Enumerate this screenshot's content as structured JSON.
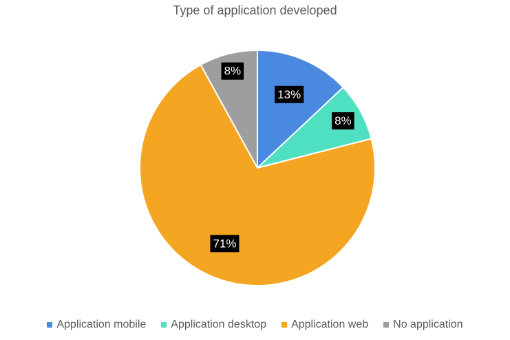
{
  "chart_data": {
    "type": "pie",
    "title": "Type of application developed",
    "categories": [
      "Application mobile",
      "Application desktop",
      "Application web",
      "No application"
    ],
    "values": [
      13,
      8,
      71,
      8
    ],
    "value_labels": [
      "13%",
      "8%",
      "71%",
      "8%"
    ],
    "colors": [
      "#4a89e0",
      "#4ee0c0",
      "#f4a623",
      "#9e9e9e"
    ],
    "legend": "bottom",
    "start_angle_deg": 0,
    "direction": "clockwise"
  }
}
